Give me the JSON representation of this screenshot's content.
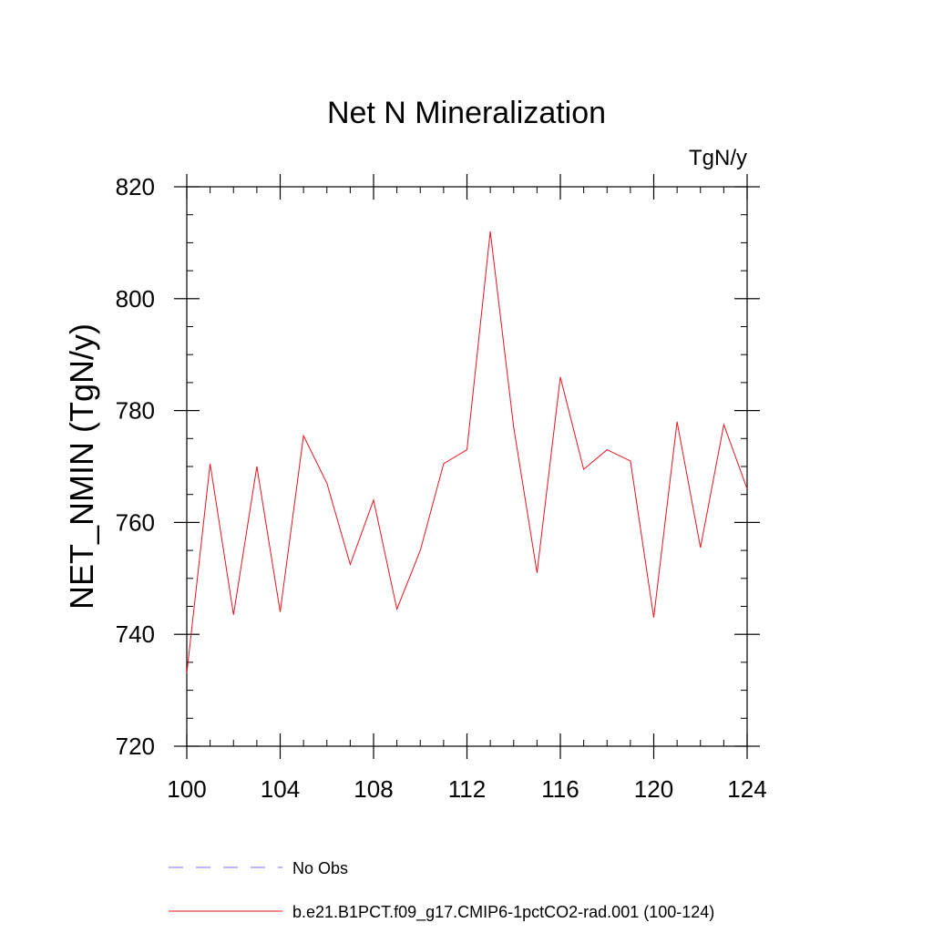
{
  "chart_data": {
    "type": "line",
    "title": "Net N Mineralization",
    "units": "TgN/y",
    "ylabel": "NET_NMIN  (TgN/y)",
    "xlabel": "",
    "xlim": [
      100,
      124
    ],
    "ylim": [
      720,
      820
    ],
    "x_ticks": [
      100,
      104,
      108,
      112,
      116,
      120,
      124
    ],
    "y_ticks": [
      720,
      740,
      760,
      780,
      800,
      820
    ],
    "x_minor_step": 1,
    "y_minor_step": 5,
    "grid": false,
    "legend_position": "bottom",
    "series": [
      {
        "name": "b.e21.B1PCT.f09_g17.CMIP6-1pctCO2-rad.001 (100-124)",
        "color": "#e8141c",
        "style": "solid",
        "x": [
          100,
          101,
          102,
          103,
          104,
          105,
          106,
          107,
          108,
          109,
          110,
          111,
          112,
          113,
          114,
          115,
          116,
          117,
          118,
          119,
          120,
          121,
          122,
          123,
          124
        ],
        "y": [
          733,
          770.5,
          743.5,
          770,
          744,
          775.5,
          767,
          752.5,
          764,
          744.5,
          755,
          770.5,
          773,
          812,
          777,
          751,
          786,
          769.5,
          773,
          771,
          743,
          778,
          755.5,
          777.5,
          766
        ]
      }
    ],
    "legend": [
      {
        "label": "No Obs",
        "color": "#7b68ee",
        "style": "dashed"
      },
      {
        "label": "b.e21.B1PCT.f09_g17.CMIP6-1pctCO2-rad.001 (100-124)",
        "color": "#e8141c",
        "style": "solid"
      }
    ]
  }
}
